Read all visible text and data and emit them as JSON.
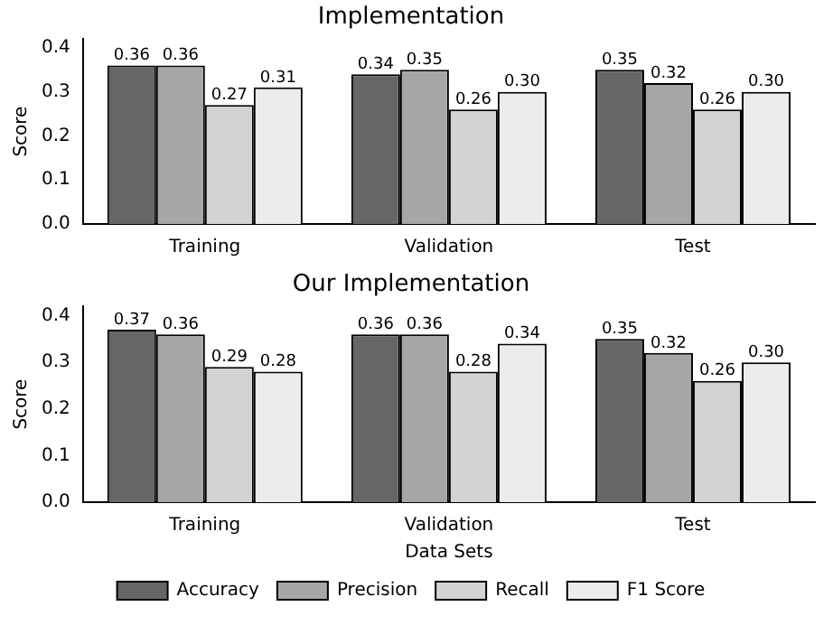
{
  "chart_data": [
    {
      "type": "bar",
      "title": "Implementation",
      "ylabel": "Score",
      "categories": [
        "Training",
        "Validation",
        "Test"
      ],
      "series": [
        {
          "color": "#666666",
          "values": [
            0.36,
            0.34,
            0.35
          ],
          "value_labels": [
            "0.36",
            "0.34",
            "0.35"
          ]
        },
        {
          "color": "#a6a6a6",
          "values": [
            0.36,
            0.35,
            0.32
          ],
          "value_labels": [
            "0.36",
            "0.35",
            "0.32"
          ]
        },
        {
          "color": "#d3d3d3",
          "values": [
            0.27,
            0.26,
            0.26
          ],
          "value_labels": [
            "0.27",
            "0.26",
            "0.26"
          ]
        },
        {
          "color": "#ececec",
          "values": [
            0.31,
            0.3,
            0.3
          ],
          "value_labels": [
            "0.31",
            "0.30",
            "0.30"
          ]
        }
      ],
      "ylim": [
        0,
        0.42
      ],
      "yticks": [
        {
          "value": 0,
          "label": "0.0"
        },
        {
          "value": 0.1,
          "label": "0.1"
        },
        {
          "value": 0.2,
          "label": "0.2"
        },
        {
          "value": 0.3,
          "label": "0.3"
        },
        {
          "value": 0.4,
          "label": "0.4"
        }
      ],
      "grid": false,
      "legend": false
    },
    {
      "type": "bar",
      "title": "Our Implementation",
      "xlabel": "Data Sets",
      "ylabel": "Score",
      "categories": [
        "Training",
        "Validation",
        "Test"
      ],
      "series": [
        {
          "name": "Accuracy",
          "color": "#666666",
          "values": [
            0.37,
            0.36,
            0.35
          ],
          "value_labels": [
            "0.37",
            "0.36",
            "0.35"
          ]
        },
        {
          "name": "Precision",
          "color": "#a6a6a6",
          "values": [
            0.36,
            0.36,
            0.32
          ],
          "value_labels": [
            "0.36",
            "0.36",
            "0.32"
          ]
        },
        {
          "name": "Recall",
          "color": "#d3d3d3",
          "values": [
            0.29,
            0.28,
            0.26
          ],
          "value_labels": [
            "0.29",
            "0.28",
            "0.26"
          ]
        },
        {
          "name": "F1 Score",
          "color": "#ececec",
          "values": [
            0.28,
            0.34,
            0.3
          ],
          "value_labels": [
            "0.28",
            "0.34",
            "0.30"
          ]
        }
      ],
      "ylim": [
        0,
        0.42
      ],
      "yticks": [
        {
          "value": 0,
          "label": "0.0"
        },
        {
          "value": 0.1,
          "label": "0.1"
        },
        {
          "value": 0.2,
          "label": "0.2"
        },
        {
          "value": 0.3,
          "label": "0.3"
        },
        {
          "value": 0.4,
          "label": "0.4"
        }
      ],
      "grid": false,
      "legend": "bottom"
    }
  ]
}
